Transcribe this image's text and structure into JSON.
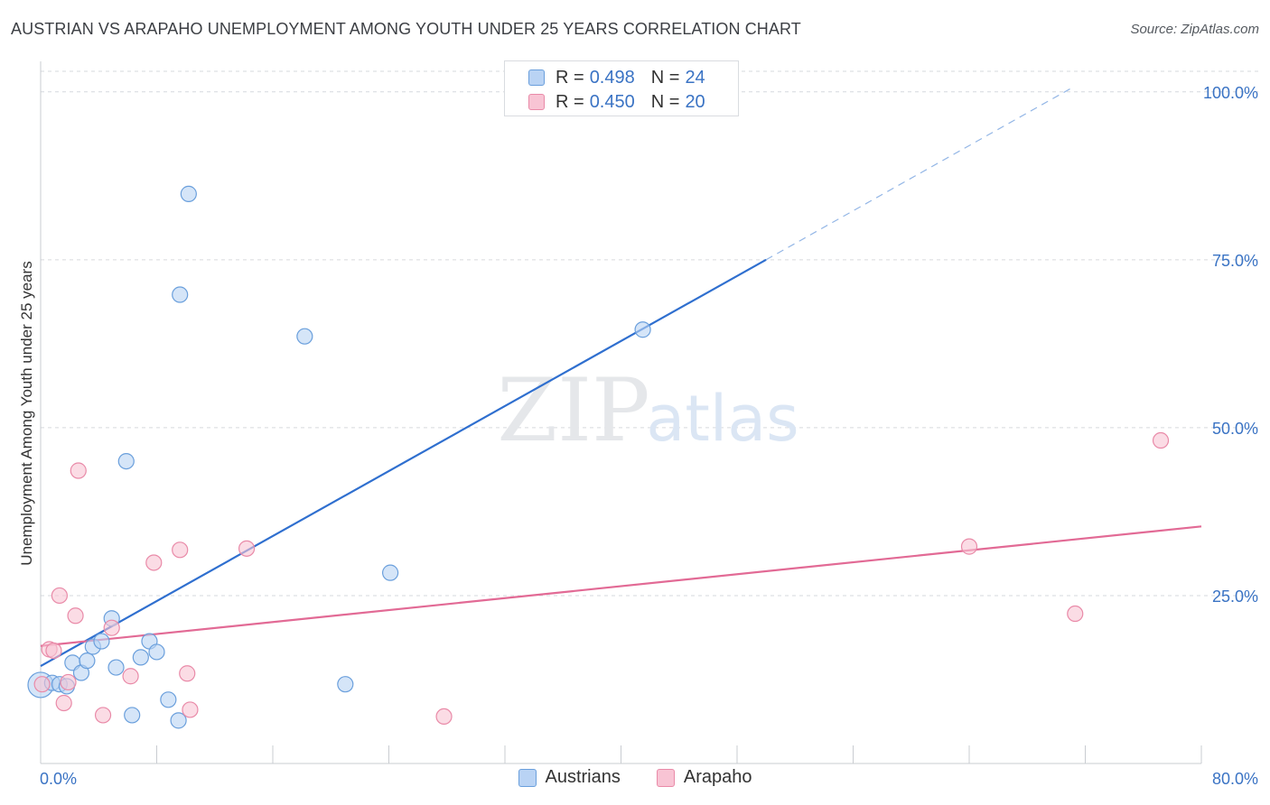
{
  "title": "AUSTRIAN VS ARAPAHO UNEMPLOYMENT AMONG YOUTH UNDER 25 YEARS CORRELATION CHART",
  "source": "Source: ZipAtlas.com",
  "watermark": {
    "zip": "ZIP",
    "atlas": "atlas"
  },
  "legend_top": [
    {
      "r_label": "R =",
      "r_value": "0.498",
      "n_label": "N =",
      "n_value": "24"
    },
    {
      "r_label": "R =",
      "r_value": "0.450",
      "n_label": "N =",
      "n_value": "20"
    }
  ],
  "colors": {
    "austrians_fill": "#b9d3f4",
    "austrians_stroke": "#6a9fdc",
    "austrians_line": "#2f6fcf",
    "arapaho_fill": "#f8c4d4",
    "arapaho_stroke": "#e98aa8",
    "arapaho_line": "#e26a95",
    "tick_label": "#3a73c4",
    "grid": "#d6d9de"
  },
  "chart_data": {
    "type": "scatter",
    "title": "AUSTRIAN VS ARAPAHO UNEMPLOYMENT AMONG YOUTH UNDER 25 YEARS CORRELATION CHART",
    "xlabel": "",
    "ylabel": "Unemployment Among Youth under 25 years",
    "xlim": [
      0,
      80
    ],
    "ylim": [
      0,
      104
    ],
    "x_tick_labels": [
      "0.0%",
      "80.0%"
    ],
    "y_ticks": [
      25,
      50,
      75,
      100
    ],
    "y_tick_labels": [
      "25.0%",
      "50.0%",
      "75.0%",
      "100.0%"
    ],
    "legend_position": "bottom",
    "series": [
      {
        "name": "Austrians",
        "r": 0.498,
        "n": 24,
        "points": [
          [
            0.0,
            11.7
          ],
          [
            0.8,
            12.0
          ],
          [
            1.3,
            11.8
          ],
          [
            1.8,
            11.5
          ],
          [
            2.2,
            15.0
          ],
          [
            2.8,
            13.5
          ],
          [
            3.2,
            15.3
          ],
          [
            3.6,
            17.4
          ],
          [
            4.2,
            18.2
          ],
          [
            4.9,
            21.6
          ],
          [
            5.2,
            14.3
          ],
          [
            5.9,
            45.0
          ],
          [
            6.3,
            7.2
          ],
          [
            6.9,
            15.8
          ],
          [
            7.5,
            18.2
          ],
          [
            8.0,
            16.6
          ],
          [
            8.8,
            9.5
          ],
          [
            9.6,
            69.8
          ],
          [
            9.5,
            6.4
          ],
          [
            10.2,
            84.8
          ],
          [
            18.2,
            63.6
          ],
          [
            21.0,
            11.8
          ],
          [
            24.1,
            28.4
          ],
          [
            41.5,
            64.6
          ]
        ],
        "trend": {
          "x": [
            0,
            50
          ],
          "y": [
            14.5,
            75.0
          ],
          "dashed_extension": {
            "x": [
              50,
              71
            ],
            "y": [
              75.0,
              100.5
            ]
          }
        }
      },
      {
        "name": "Arapaho",
        "r": 0.45,
        "n": 20,
        "points": [
          [
            0.1,
            11.8
          ],
          [
            0.6,
            17.0
          ],
          [
            0.9,
            16.8
          ],
          [
            1.3,
            25.0
          ],
          [
            1.6,
            9.0
          ],
          [
            1.9,
            12.1
          ],
          [
            2.4,
            22.0
          ],
          [
            2.6,
            43.6
          ],
          [
            4.3,
            7.2
          ],
          [
            4.9,
            20.2
          ],
          [
            6.2,
            13.0
          ],
          [
            7.8,
            29.9
          ],
          [
            9.6,
            31.8
          ],
          [
            10.1,
            13.4
          ],
          [
            10.3,
            8.0
          ],
          [
            14.2,
            32.0
          ],
          [
            27.8,
            7.0
          ],
          [
            64.0,
            32.3
          ],
          [
            71.3,
            22.3
          ],
          [
            77.2,
            48.1
          ]
        ],
        "trend": {
          "x": [
            0,
            80
          ],
          "y": [
            17.5,
            35.3
          ]
        }
      }
    ]
  }
}
